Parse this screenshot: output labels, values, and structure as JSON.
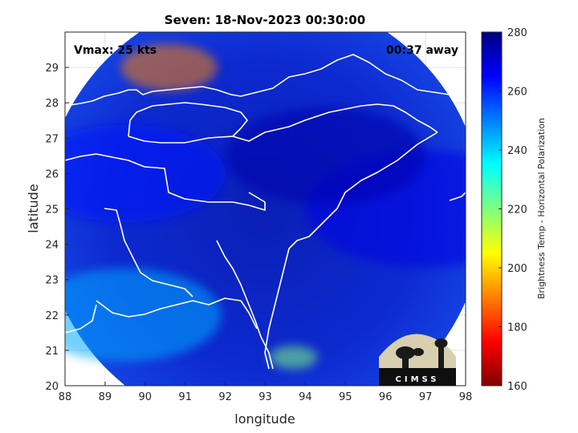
{
  "chart_data": {
    "type": "heatmap",
    "title": "Seven: 18-Nov-2023 00:30:00",
    "xlabel": "longitude",
    "ylabel": "latitude",
    "xlim": [
      88,
      98
    ],
    "ylim": [
      20,
      30
    ],
    "xticks": [
      "88",
      "89",
      "90",
      "91",
      "92",
      "93",
      "94",
      "95",
      "96",
      "97",
      "98"
    ],
    "yticks": [
      "20",
      "21",
      "22",
      "23",
      "24",
      "25",
      "26",
      "27",
      "28",
      "29"
    ],
    "annotation_left": "Vmax: 25 kts",
    "annotation_right": "00:37 away",
    "colorbar": {
      "label": "Brightness Temp - Horizontal Polarization",
      "range": [
        160,
        280
      ],
      "ticks": [
        "280",
        "260",
        "240",
        "220",
        "200",
        "180",
        "160"
      ],
      "colormap": "jet"
    },
    "swath_center": [
      92.95,
      24.85
    ],
    "swath_radius_deg": 5.5,
    "field_regions": [
      {
        "region": "swath background",
        "value": 268
      },
      {
        "region": "north-west plains",
        "value": 262
      },
      {
        "region": "Bay of Bengal coast",
        "value": 245
      },
      {
        "region": "cold cloud near 90.5E 29N",
        "value": 190
      },
      {
        "region": "cold cloud near 93.7E 20.8N",
        "value": 220
      },
      {
        "region": "interior hills",
        "value": 275
      }
    ],
    "grid": true
  },
  "logo": {
    "text": "CIMSS"
  },
  "colors": {
    "background": "#ffffff",
    "grid": "#d9d9d9",
    "coastline": "#ffffff",
    "axis": "#262626"
  }
}
